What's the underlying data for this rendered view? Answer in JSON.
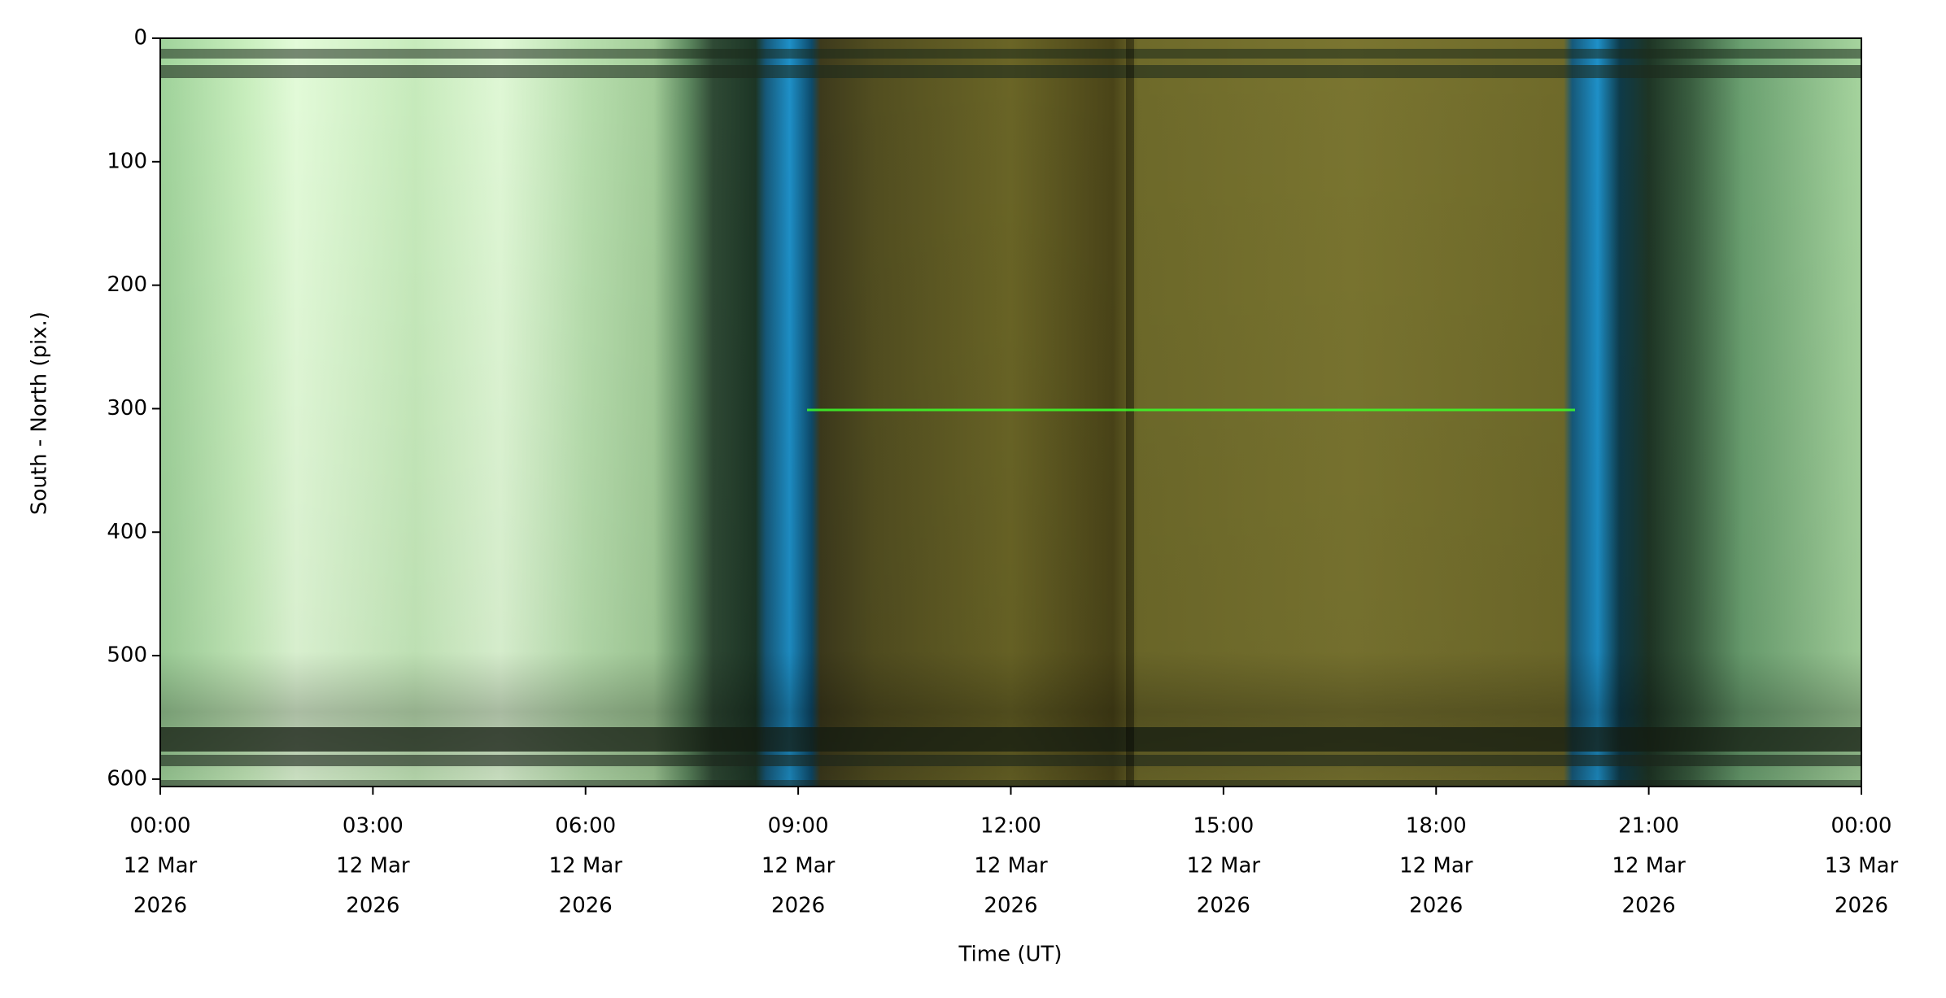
{
  "chart_data": {
    "type": "image",
    "x_label": "Time (UT)",
    "y_label": "South - North (pix.)",
    "xlim": [
      0,
      24
    ],
    "ylim": [
      0,
      606
    ],
    "y_inverted": true,
    "xticks": [
      {
        "value": 0,
        "label": [
          "00:00",
          "12 Mar",
          "2026"
        ]
      },
      {
        "value": 3,
        "label": [
          "03:00",
          "12 Mar",
          "2026"
        ]
      },
      {
        "value": 6,
        "label": [
          "06:00",
          "12 Mar",
          "2026"
        ]
      },
      {
        "value": 9,
        "label": [
          "09:00",
          "12 Mar",
          "2026"
        ]
      },
      {
        "value": 12,
        "label": [
          "12:00",
          "12 Mar",
          "2026"
        ]
      },
      {
        "value": 15,
        "label": [
          "15:00",
          "12 Mar",
          "2026"
        ]
      },
      {
        "value": 18,
        "label": [
          "18:00",
          "12 Mar",
          "2026"
        ]
      },
      {
        "value": 21,
        "label": [
          "21:00",
          "12 Mar",
          "2026"
        ]
      },
      {
        "value": 24,
        "label": [
          "00:00",
          "13 Mar",
          "2026"
        ]
      }
    ],
    "yticks": [
      0,
      100,
      200,
      300,
      400,
      500,
      600
    ]
  }
}
